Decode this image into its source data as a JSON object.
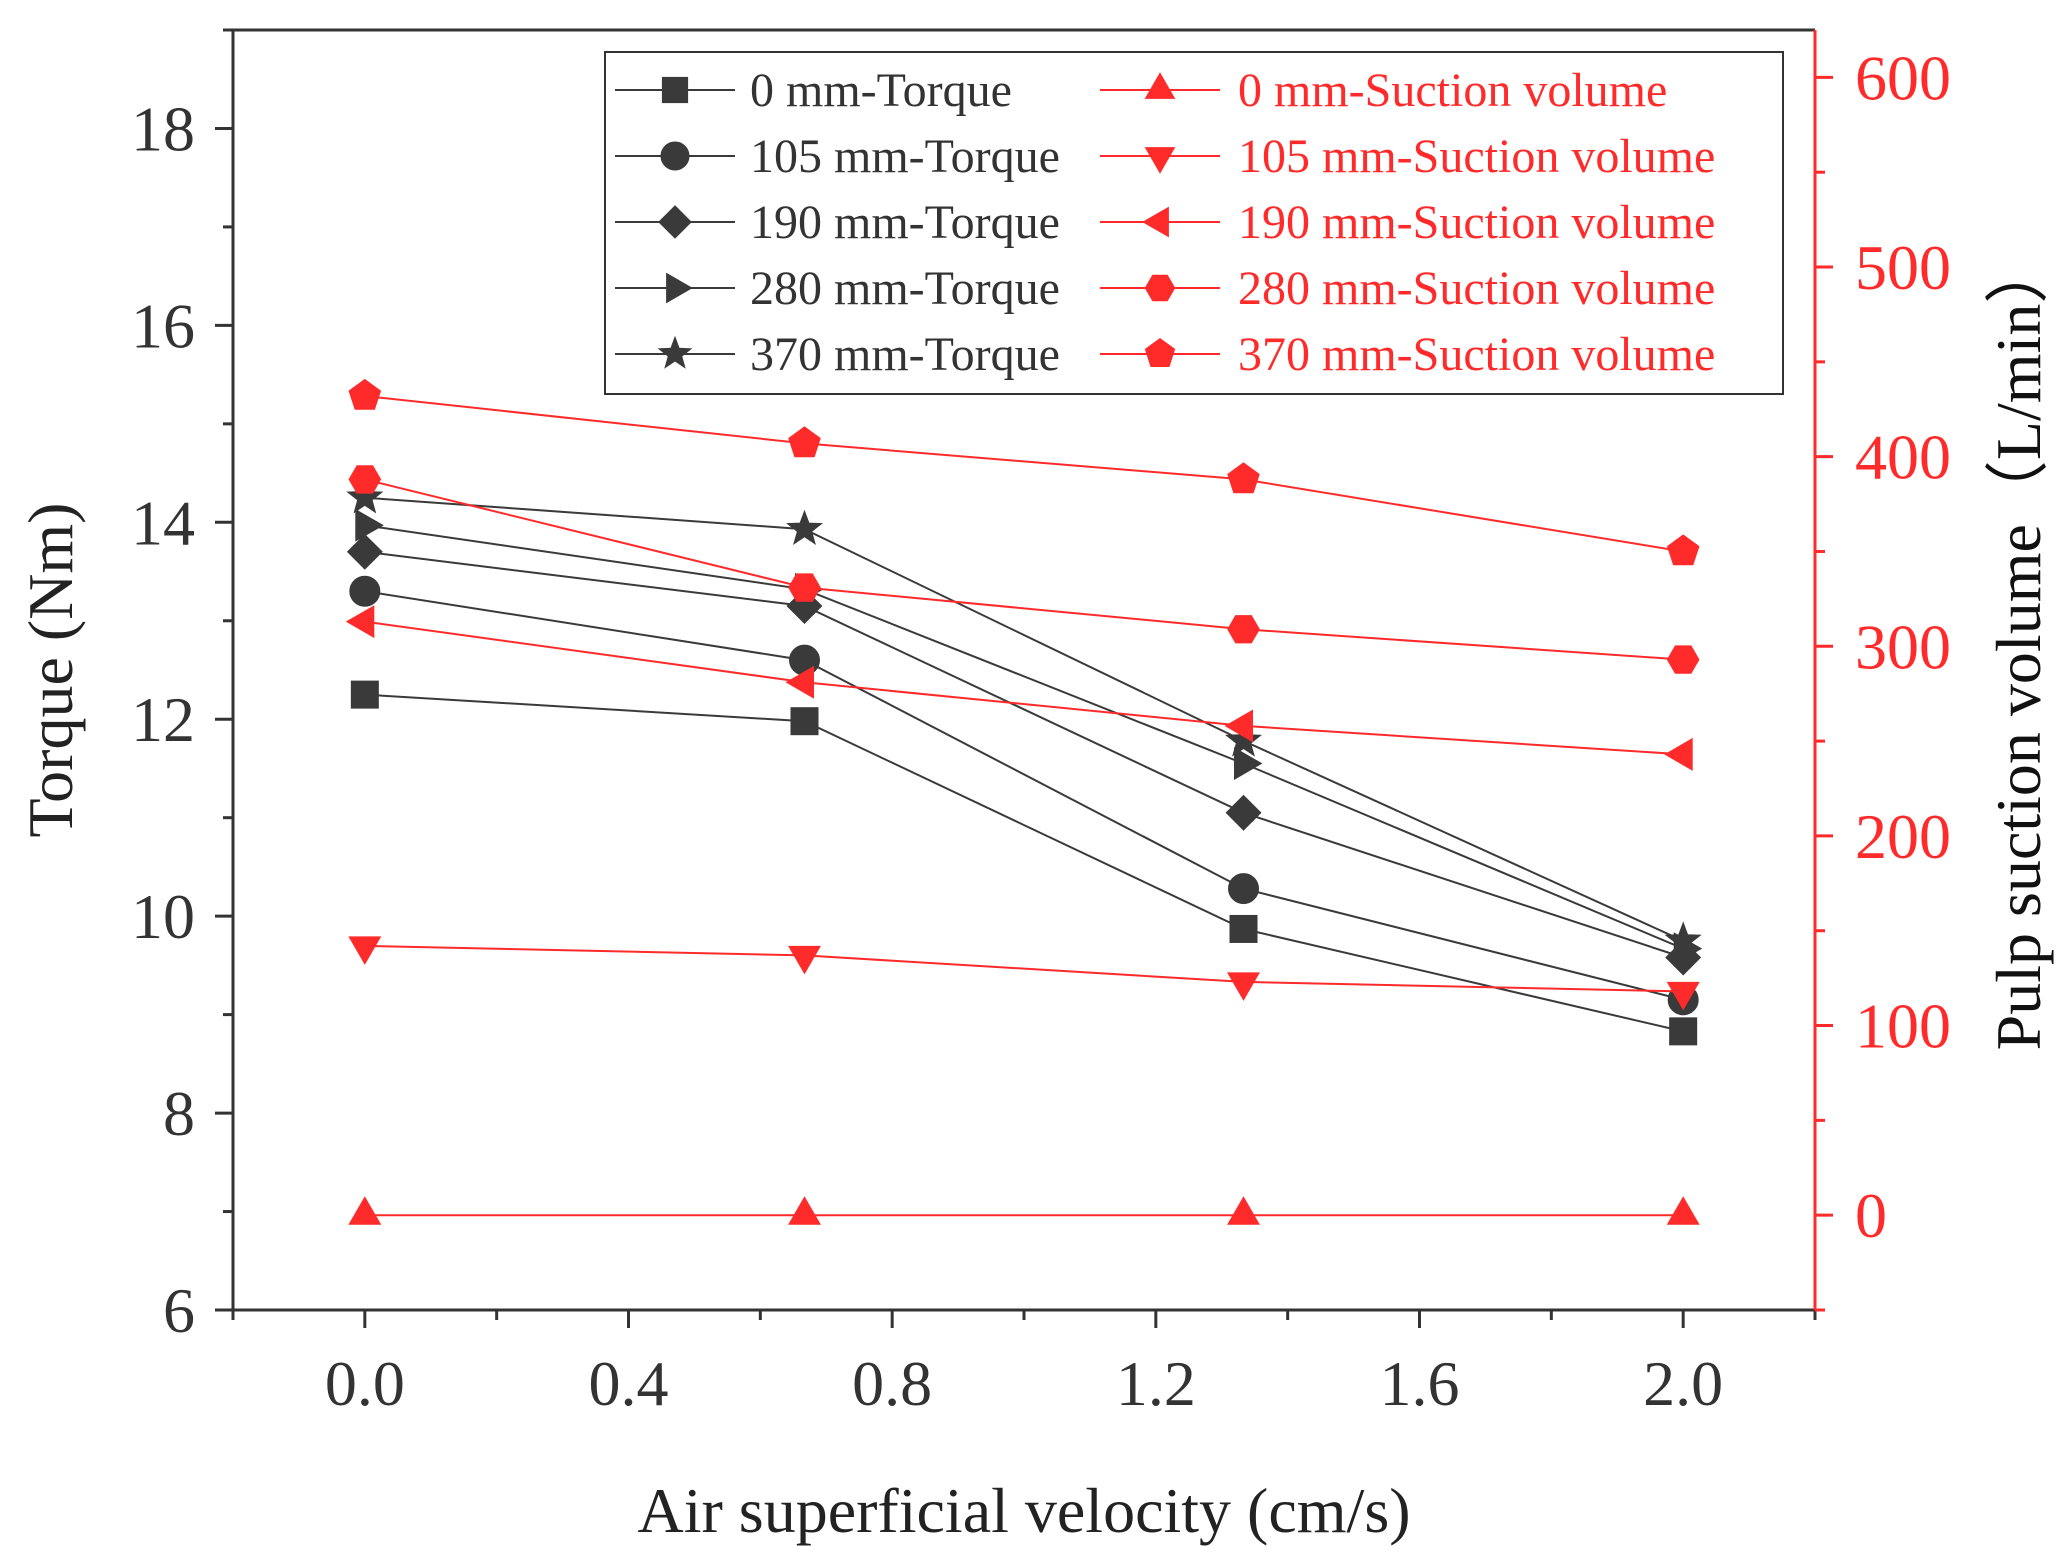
{
  "chart_data": {
    "type": "line",
    "title": "",
    "xlabel": "Air superficial velocity (cm/s)",
    "ylabel_left": "Torque (Nm)",
    "ylabel_right": "Pulp suction volume（L/min）",
    "xlim": [
      -0.2,
      2.2
    ],
    "ylim_left": [
      6,
      19
    ],
    "ylim_right": [
      -50,
      625
    ],
    "x_ticks": [
      "0.0",
      "0.4",
      "0.8",
      "1.2",
      "1.6",
      "2.0"
    ],
    "y_left_ticks": [
      "6",
      "8",
      "10",
      "12",
      "14",
      "16",
      "18"
    ],
    "y_right_ticks": [
      "0",
      "100",
      "200",
      "300",
      "400",
      "500",
      "600"
    ],
    "x": [
      0,
      0.667,
      1.333,
      2.0
    ],
    "grid": false,
    "legend_position": "top",
    "series": [
      {
        "name": "0 mm-Torque",
        "axis": "left",
        "marker": "square",
        "color": "#3a3a3a",
        "values": [
          12.25,
          11.98,
          9.87,
          8.83
        ]
      },
      {
        "name": "105 mm-Torque",
        "axis": "left",
        "marker": "circle",
        "color": "#3a3a3a",
        "values": [
          13.3,
          12.6,
          10.28,
          9.15
        ]
      },
      {
        "name": "190 mm-Torque",
        "axis": "left",
        "marker": "diamond",
        "color": "#3a3a3a",
        "values": [
          13.7,
          13.15,
          11.05,
          9.58
        ]
      },
      {
        "name": "280 mm-Torque",
        "axis": "left",
        "marker": "triangle-right",
        "color": "#3a3a3a",
        "values": [
          13.97,
          13.32,
          11.55,
          9.67
        ]
      },
      {
        "name": "370 mm-Torque",
        "axis": "left",
        "marker": "star",
        "color": "#3a3a3a",
        "values": [
          14.25,
          13.93,
          11.78,
          9.75
        ]
      },
      {
        "name": "0 mm-Suction volume",
        "axis": "right",
        "marker": "triangle-up",
        "color": "#ff2a2a",
        "values": [
          0,
          0,
          0,
          0
        ]
      },
      {
        "name": "105 mm-Suction volume",
        "axis": "right",
        "marker": "triangle-down",
        "color": "#ff2a2a",
        "values": [
          142,
          137,
          123,
          118
        ]
      },
      {
        "name": "190 mm-Suction volume",
        "axis": "right",
        "marker": "triangle-left",
        "color": "#ff2a2a",
        "values": [
          313,
          281,
          258,
          243
        ]
      },
      {
        "name": "280 mm-Suction volume",
        "axis": "right",
        "marker": "hexagon",
        "color": "#ff2a2a",
        "values": [
          388,
          331,
          309,
          293
        ]
      },
      {
        "name": "370 mm-Suction volume",
        "axis": "right",
        "marker": "pentagon",
        "color": "#ff2a2a",
        "values": [
          432,
          407,
          388,
          350
        ]
      }
    ]
  }
}
